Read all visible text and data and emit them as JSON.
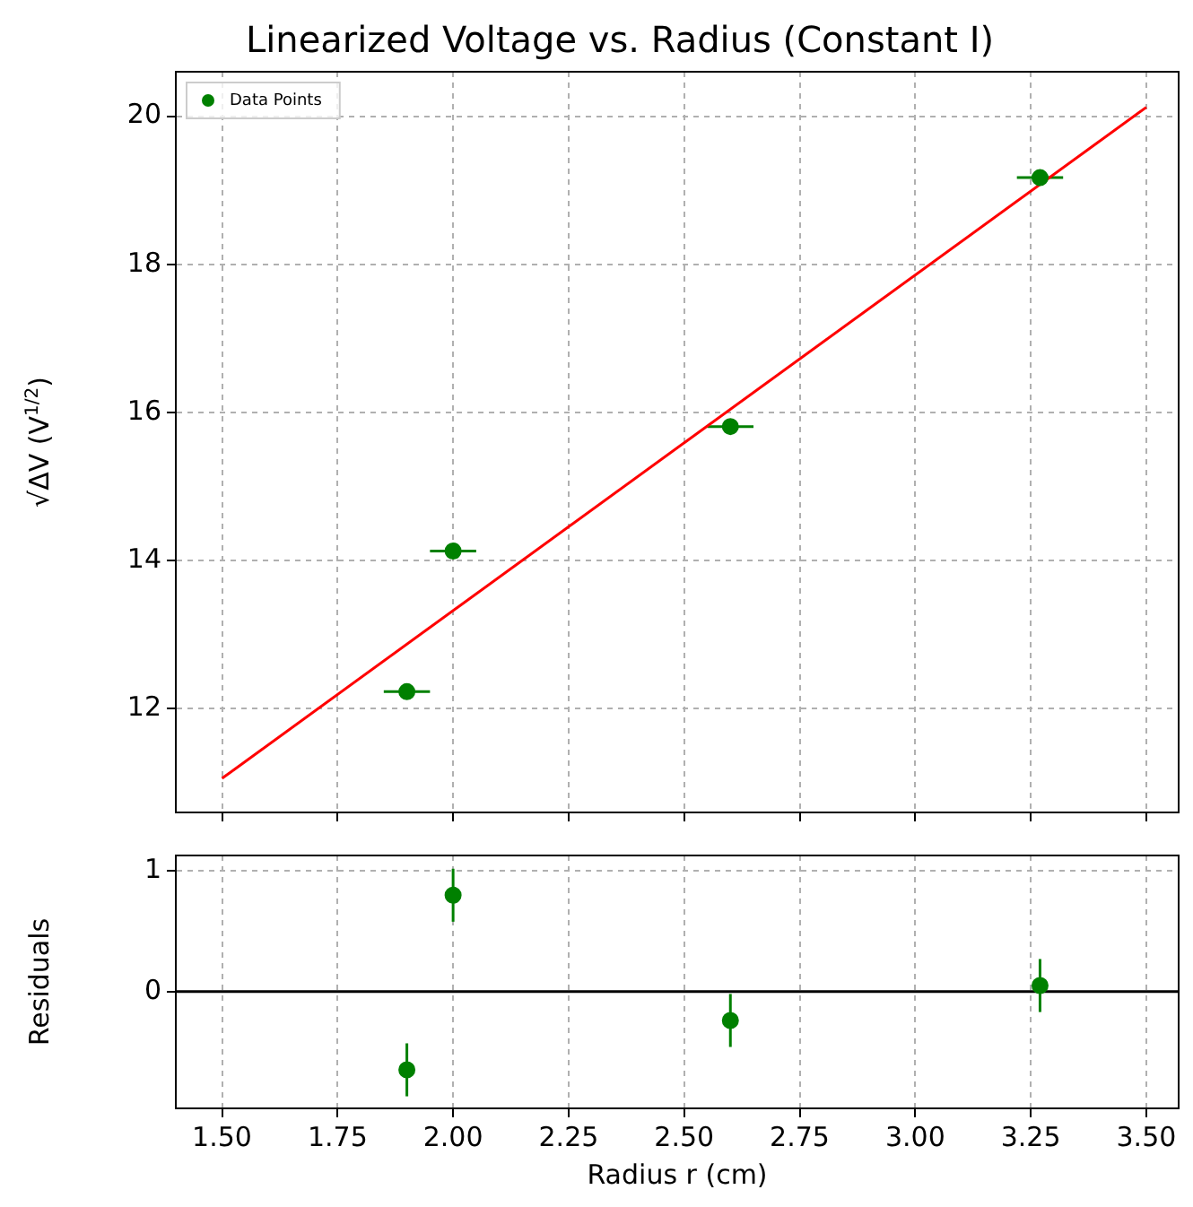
{
  "chart_data": [
    {
      "type": "scatter",
      "title": "Linearized Voltage vs. Radius (Constant I)",
      "ylabel": "√ΔV (V$^{1/2}$)",
      "xlim": [
        1.4,
        3.57
      ],
      "xticks": [
        {
          "value": 1.5,
          "label": null
        },
        {
          "value": 1.75,
          "label": null
        },
        {
          "value": 2.0,
          "label": null
        },
        {
          "value": 2.25,
          "label": null
        },
        {
          "value": 2.5,
          "label": null
        },
        {
          "value": 2.75,
          "label": null
        },
        {
          "value": 3.0,
          "label": null
        },
        {
          "value": 3.25,
          "label": null
        },
        {
          "value": 3.5,
          "label": null
        }
      ],
      "ylim": [
        10.6,
        20.6
      ],
      "yticks": [
        12,
        14,
        16,
        18,
        20
      ],
      "tick_labels": "y",
      "grid": true,
      "legend": "top left",
      "series": [
        {
          "name": "Data Points",
          "color": "#008000",
          "marker": "circle",
          "x": [
            1.9,
            2.0,
            2.6,
            3.27
          ],
          "values": [
            12.23,
            14.13,
            15.81,
            19.17
          ],
          "xerrors": [
            0.05,
            0.05,
            0.05,
            0.05
          ]
        },
        {
          "type": "line",
          "color": "#ff0000",
          "marker": "none",
          "x": [
            1.5,
            3.5
          ],
          "values": [
            11.06,
            20.12
          ]
        }
      ]
    },
    {
      "type": "scatter",
      "xlabel": "Radius r (cm)",
      "ylabel": "Residuals",
      "xlim": [
        1.4,
        3.57
      ],
      "xticks": [
        {
          "value": 1.5,
          "label": "1.50"
        },
        1.75,
        {
          "value": 2,
          "label": "2.00"
        },
        2.25,
        {
          "value": 2.5,
          "label": "2.50"
        },
        2.75,
        {
          "value": 3,
          "label": "3.00"
        },
        3.25,
        {
          "value": 3.5,
          "label": "3.50"
        }
      ],
      "ylim": [
        -0.97,
        1.13
      ],
      "yticks": [
        0,
        1
      ],
      "grid": true,
      "ref_lines": [
        {
          "axis": "y",
          "value": 0,
          "color": "#000000"
        }
      ],
      "series": [
        {
          "color": "#008000",
          "marker": "circle",
          "x": [
            1.9,
            2.0,
            2.6,
            3.27
          ],
          "values": [
            -0.65,
            0.8,
            -0.24,
            0.05
          ],
          "errors": [
            0.22,
            0.22,
            0.22,
            0.22
          ]
        }
      ]
    }
  ]
}
